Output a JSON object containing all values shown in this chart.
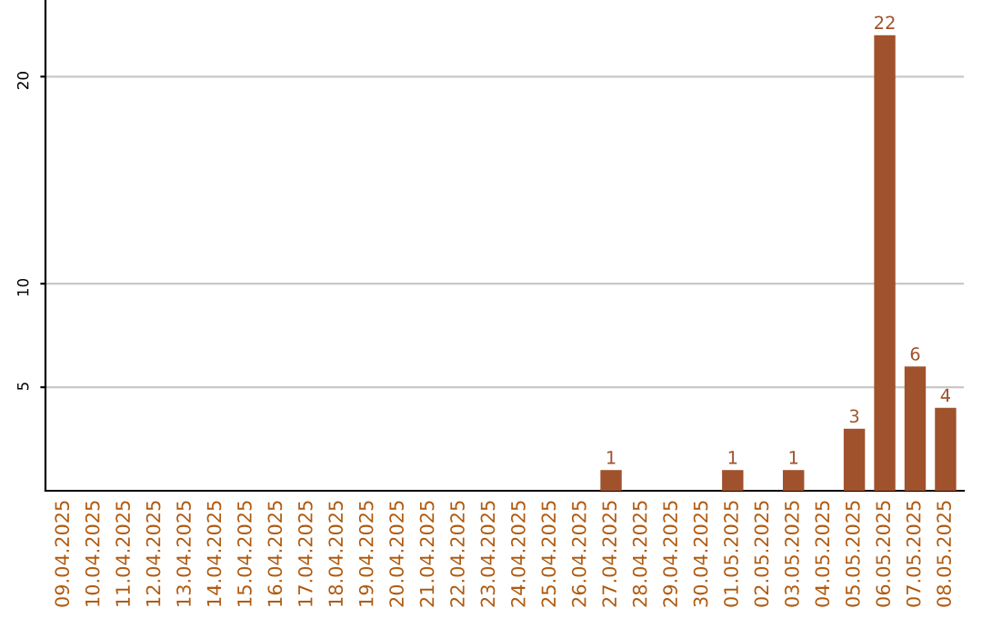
{
  "chart_data": {
    "type": "bar",
    "categories": [
      "09.04.2025",
      "10.04.2025",
      "11.04.2025",
      "12.04.2025",
      "13.04.2025",
      "14.04.2025",
      "15.04.2025",
      "16.04.2025",
      "17.04.2025",
      "18.04.2025",
      "19.04.2025",
      "20.04.2025",
      "21.04.2025",
      "22.04.2025",
      "23.04.2025",
      "24.04.2025",
      "25.04.2025",
      "26.04.2025",
      "27.04.2025",
      "28.04.2025",
      "29.04.2025",
      "30.04.2025",
      "01.05.2025",
      "02.05.2025",
      "03.05.2025",
      "04.05.2025",
      "05.05.2025",
      "06.05.2025",
      "07.05.2025",
      "08.05.2025"
    ],
    "values": [
      0,
      0,
      0,
      0,
      0,
      0,
      0,
      0,
      0,
      0,
      0,
      0,
      0,
      0,
      0,
      0,
      0,
      0,
      1,
      0,
      0,
      0,
      1,
      0,
      1,
      0,
      3,
      22,
      6,
      4
    ],
    "value_labels": [
      null,
      null,
      null,
      null,
      null,
      null,
      null,
      null,
      null,
      null,
      null,
      null,
      null,
      null,
      null,
      null,
      null,
      null,
      "1",
      null,
      null,
      null,
      "1",
      null,
      "1",
      null,
      "3",
      "22",
      "6",
      "4"
    ],
    "color": "#a0522d",
    "ylim": [
      0,
      23.7
    ],
    "yticks": [
      5,
      10,
      20
    ],
    "grid": "y"
  }
}
